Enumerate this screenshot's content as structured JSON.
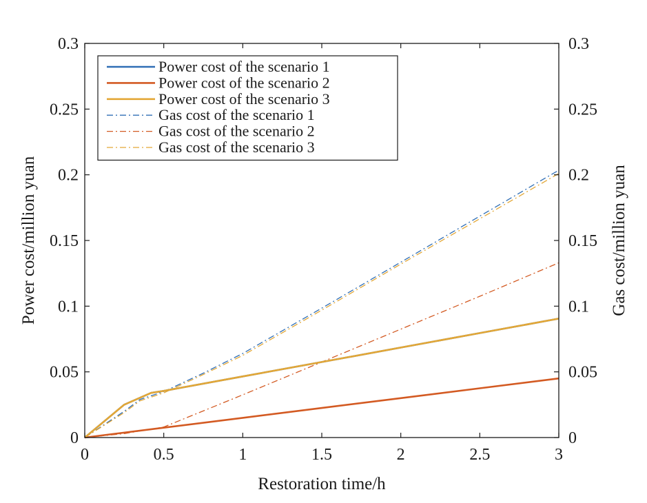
{
  "chart_data": {
    "type": "line",
    "title": "",
    "xlabel": "Restoration time/h",
    "ylabel": "Power cost/million yuan",
    "y2label": "Gas cost/million yuan",
    "xlim": [
      0,
      3
    ],
    "ylim": [
      0,
      0.3
    ],
    "y2lim": [
      0,
      0.3
    ],
    "xticks": [
      "0",
      "0.5",
      "1",
      "1.5",
      "2",
      "2.5",
      "3"
    ],
    "yticks": [
      "0",
      "0.05",
      "0.1",
      "0.15",
      "0.2",
      "0.25",
      "0.3"
    ],
    "y2ticks": [
      "0",
      "0.05",
      "0.1",
      "0.15",
      "0.2",
      "0.25",
      "0.3"
    ],
    "grid": false,
    "legend_position": "top-left",
    "series": [
      {
        "name": "Power cost of the scenario 1",
        "style": "solid",
        "axis": "left",
        "color": "#2f6eb5",
        "x": [
          0,
          0.25,
          0.42,
          0.5,
          1,
          1.5,
          2,
          2.5,
          3
        ],
        "y": [
          0,
          0.025,
          0.034,
          0.0355,
          0.0465,
          0.0575,
          0.0685,
          0.0795,
          0.0905
        ]
      },
      {
        "name": "Power cost of the scenario 2",
        "style": "solid",
        "axis": "left",
        "color": "#d35a22",
        "x": [
          0,
          0.5,
          1,
          1.5,
          2,
          2.5,
          3
        ],
        "y": [
          0,
          0.0075,
          0.015,
          0.0225,
          0.03,
          0.0375,
          0.045
        ]
      },
      {
        "name": "Power cost of the scenario 3",
        "style": "solid",
        "axis": "left",
        "color": "#e3a736",
        "x": [
          0,
          0.25,
          0.42,
          0.5,
          1,
          1.5,
          2,
          2.5,
          3
        ],
        "y": [
          0,
          0.025,
          0.034,
          0.0355,
          0.0465,
          0.0575,
          0.0685,
          0.0795,
          0.0905
        ]
      },
      {
        "name": "Gas cost of the scenario 1",
        "style": "dashdot",
        "axis": "right",
        "color": "#2f6eb5",
        "x": [
          0,
          0.25,
          0.35,
          0.5,
          0.75,
          1,
          1.5,
          2,
          2.5,
          3
        ],
        "y": [
          0,
          0.02,
          0.029,
          0.035,
          0.049,
          0.064,
          0.0985,
          0.1335,
          0.1685,
          0.2035
        ]
      },
      {
        "name": "Gas cost of the scenario 2",
        "style": "dashdot",
        "axis": "right",
        "color": "#d35a22",
        "x": [
          0,
          0.25,
          0.5,
          1,
          1.5,
          2,
          2.5,
          3
        ],
        "y": [
          0,
          0.003,
          0.008,
          0.0325,
          0.0575,
          0.0825,
          0.1075,
          0.133
        ]
      },
      {
        "name": "Gas cost of the scenario 3",
        "style": "dashdot",
        "axis": "right",
        "color": "#e3a736",
        "x": [
          0,
          0.25,
          0.35,
          0.5,
          0.75,
          1,
          1.5,
          2,
          2.5,
          3
        ],
        "y": [
          0,
          0.019,
          0.028,
          0.034,
          0.048,
          0.0625,
          0.097,
          0.132,
          0.1665,
          0.201
        ]
      }
    ]
  }
}
